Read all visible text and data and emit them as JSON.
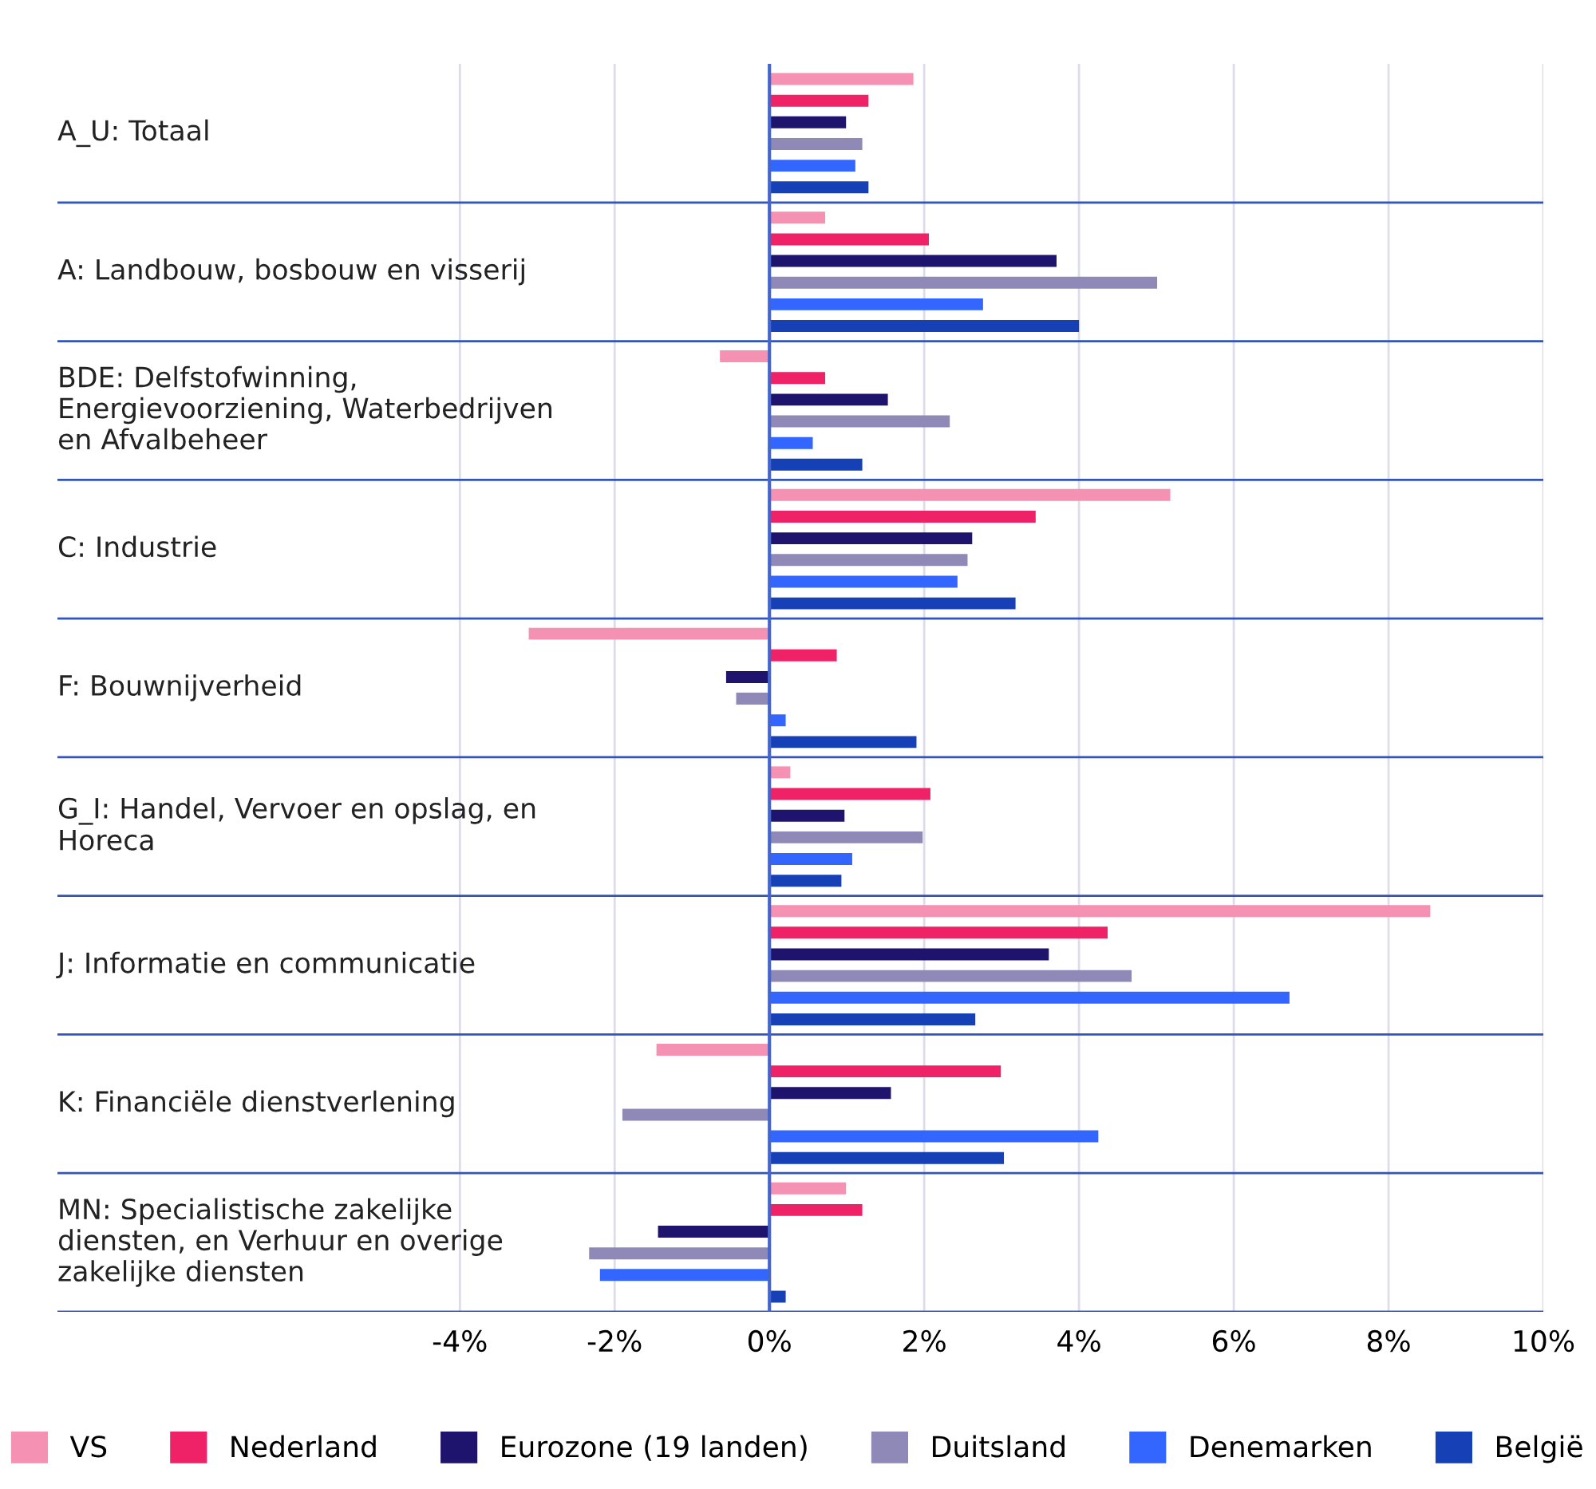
{
  "chart_data": {
    "type": "bar",
    "orientation": "horizontal",
    "categories": [
      "A_U: Totaal",
      "A: Landbouw, bosbouw en visserij",
      "BDE: Delfstofwinning, Energievoorziening, Waterbedrijven en Afvalbeheer",
      "C: Industrie",
      "F: Bouwnijverheid",
      "G_I: Handel, Vervoer en opslag, en Horeca",
      "J: Informatie en communicatie",
      "K: Financiële dienstverlening",
      "MN: Specialistische zakelijke diensten, en Verhuur en overige zakelijke diensten"
    ],
    "series": [
      {
        "name": "VS",
        "color": "#f591b2",
        "values": [
          1.86,
          0.72,
          -0.64,
          5.18,
          -3.11,
          0.27,
          8.54,
          -1.46,
          0.99
        ]
      },
      {
        "name": "Nederland",
        "color": "#ef2167",
        "values": [
          1.28,
          2.06,
          0.72,
          3.44,
          0.87,
          2.08,
          4.37,
          2.99,
          1.2
        ]
      },
      {
        "name": "Eurozone (19 landen)",
        "color": "#1e146e",
        "values": [
          0.99,
          3.71,
          1.53,
          2.62,
          -0.56,
          0.97,
          3.61,
          1.57,
          -1.44
        ]
      },
      {
        "name": "Duitsland",
        "color": "#8f89b8",
        "values": [
          1.2,
          5.01,
          2.33,
          2.56,
          -0.43,
          1.98,
          4.68,
          -1.9,
          -2.33
        ]
      },
      {
        "name": "Denemarken",
        "color": "#3366ff",
        "values": [
          1.11,
          2.76,
          0.56,
          2.43,
          0.21,
          1.07,
          6.72,
          4.25,
          -2.19
        ]
      },
      {
        "name": "België",
        "color": "#1640b5",
        "values": [
          1.28,
          4.0,
          1.2,
          3.18,
          1.9,
          0.93,
          2.66,
          3.03,
          0.21
        ]
      }
    ],
    "xlim": [
      -9.2,
      10
    ],
    "xticks": [
      {
        "value": -4,
        "label": "-4%"
      },
      {
        "value": -2,
        "label": "-2%"
      },
      {
        "value": 0,
        "label": "0%"
      },
      {
        "value": 2,
        "label": "2%"
      },
      {
        "value": 4,
        "label": "4%"
      },
      {
        "value": 6,
        "label": "6%"
      },
      {
        "value": 8,
        "label": "8%"
      },
      {
        "value": 10,
        "label": "10%"
      }
    ],
    "ref_lines": [
      {
        "axis": "x",
        "value": 0,
        "color": "#4466cc"
      }
    ],
    "grid": "x",
    "legend": "bottom"
  }
}
